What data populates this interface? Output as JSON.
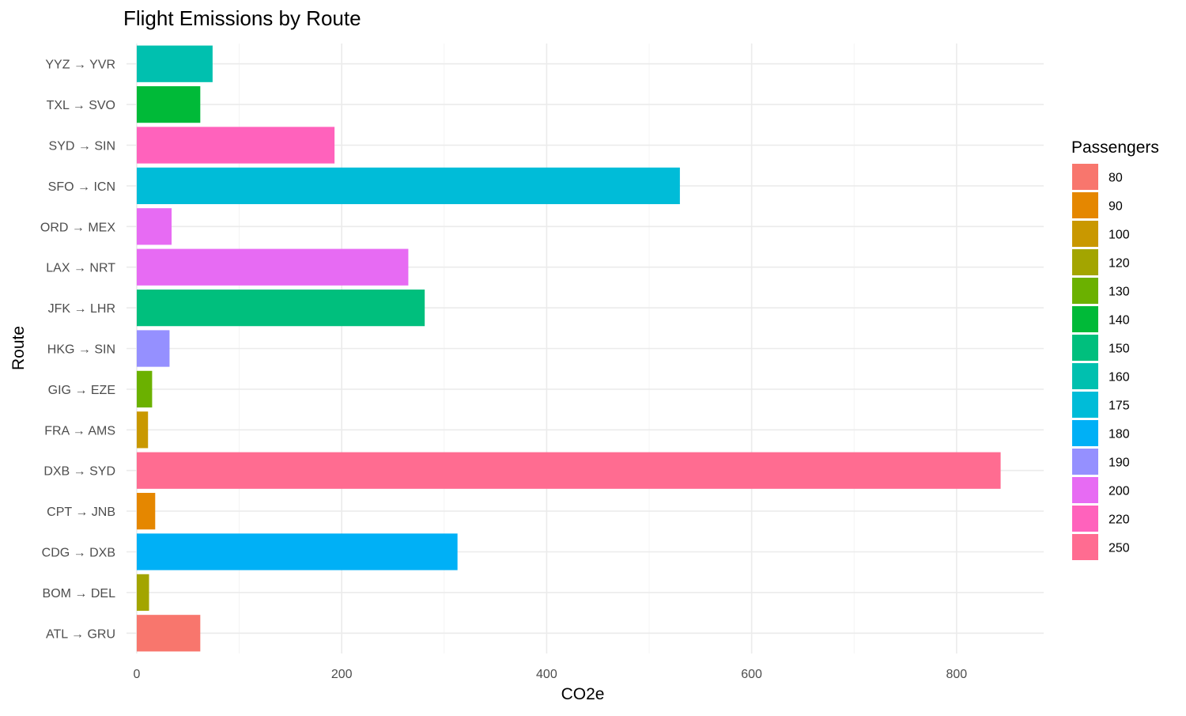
{
  "chart_data": {
    "type": "bar",
    "orientation": "horizontal",
    "title": "Flight Emissions by Route",
    "xlabel": "CO2e",
    "ylabel": "Route",
    "xlim": [
      -10,
      885
    ],
    "x_ticks": [
      0,
      200,
      400,
      600,
      800
    ],
    "x_tick_labels": [
      "0",
      "200",
      "400",
      "600",
      "800"
    ],
    "grid": true,
    "legend": {
      "title": "Passengers",
      "placement": "right",
      "entries": [
        {
          "label": "80",
          "color": "#F8766D"
        },
        {
          "label": "90",
          "color": "#E58700"
        },
        {
          "label": "100",
          "color": "#C99800"
        },
        {
          "label": "120",
          "color": "#A3A500"
        },
        {
          "label": "130",
          "color": "#6BB100"
        },
        {
          "label": "140",
          "color": "#00BA38"
        },
        {
          "label": "150",
          "color": "#00BF7D"
        },
        {
          "label": "160",
          "color": "#00C0AF"
        },
        {
          "label": "175",
          "color": "#00BCD8"
        },
        {
          "label": "180",
          "color": "#00B0F6"
        },
        {
          "label": "190",
          "color": "#9590FF"
        },
        {
          "label": "200",
          "color": "#E76BF3"
        },
        {
          "label": "220",
          "color": "#FF62BC"
        },
        {
          "label": "250",
          "color": "#FF6C91"
        }
      ]
    },
    "categories": [
      "ATL → GRU",
      "BOM → DEL",
      "CDG → DXB",
      "CPT → JNB",
      "DXB → SYD",
      "FRA → AMS",
      "GIG → EZE",
      "HKG → SIN",
      "JFK → LHR",
      "LAX → NRT",
      "ORD → MEX",
      "SFO → ICN",
      "SYD → SIN",
      "TXL → SVO",
      "YYZ → YVR"
    ],
    "values": [
      62,
      12,
      313,
      18,
      843,
      11,
      15,
      32,
      281,
      265,
      34,
      530,
      193,
      62,
      74
    ],
    "passengers": [
      "80",
      "120",
      "180",
      "90",
      "250",
      "100",
      "130",
      "190",
      "150",
      "200",
      "200",
      "175",
      "220",
      "140",
      "160"
    ]
  }
}
